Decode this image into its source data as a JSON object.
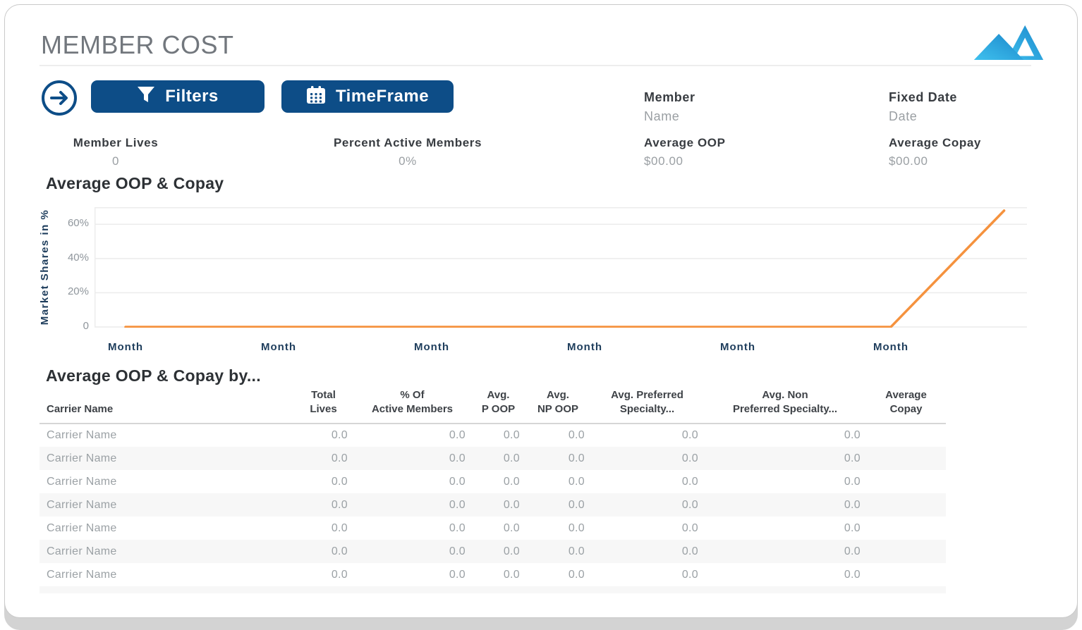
{
  "header": {
    "title": "MEMBER COST"
  },
  "toolbar": {
    "filters_label": "Filters",
    "timeframe_label": "TimeFrame",
    "member": {
      "label": "Member",
      "value": "Name"
    },
    "fixed_date": {
      "label": "Fixed Date",
      "value": "Date"
    }
  },
  "stats": {
    "member_lives": {
      "label": "Member Lives",
      "value": "0"
    },
    "percent_active_members": {
      "label": "Percent Active Members",
      "value": "0%"
    },
    "average_oop": {
      "label": "Average OOP",
      "value": "$00.00"
    },
    "average_copay": {
      "label": "Average Copay",
      "value": "$00.00"
    }
  },
  "chart_data": {
    "type": "line",
    "title": "Average OOP & Copay",
    "ylabel": "Market Shares in %",
    "x_tick_labels": [
      "Month",
      "Month",
      "Month",
      "Month",
      "Month",
      "Month"
    ],
    "x": [
      0,
      1,
      2,
      3,
      4,
      5,
      5.74
    ],
    "yticks": [
      0,
      20,
      40,
      60
    ],
    "ytick_labels": [
      "0",
      "20%",
      "40%",
      "60%"
    ],
    "ylim": [
      0,
      70
    ],
    "grid": "horizontal",
    "legend": "none",
    "series": [
      {
        "name": "Market Shares",
        "color": "#f5923e",
        "values": [
          0,
          0,
          0,
          0,
          0,
          0,
          68
        ]
      }
    ]
  },
  "table": {
    "title": "Average OOP & Copay by...",
    "columns": [
      "Carrier Name",
      "Total\nLives",
      "% Of\nActive Members",
      "Avg.\nP OOP",
      "Avg.\nNP OOP",
      "Avg. Preferred\nSpecialty...",
      "Avg. Non\nPreferred Specialty...",
      "Average\nCopay"
    ],
    "rows": [
      [
        "Carrier Name",
        "0.0",
        "0.0",
        "0.0",
        "0.0",
        "0.0",
        "0.0",
        ""
      ],
      [
        "Carrier Name",
        "0.0",
        "0.0",
        "0.0",
        "0.0",
        "0.0",
        "0.0",
        ""
      ],
      [
        "Carrier Name",
        "0.0",
        "0.0",
        "0.0",
        "0.0",
        "0.0",
        "0.0",
        ""
      ],
      [
        "Carrier Name",
        "0.0",
        "0.0",
        "0.0",
        "0.0",
        "0.0",
        "0.0",
        ""
      ],
      [
        "Carrier Name",
        "0.0",
        "0.0",
        "0.0",
        "0.0",
        "0.0",
        "0.0",
        ""
      ],
      [
        "Carrier Name",
        "0.0",
        "0.0",
        "0.0",
        "0.0",
        "0.0",
        "0.0",
        ""
      ],
      [
        "Carrier Name",
        "0.0",
        "0.0",
        "0.0",
        "0.0",
        "0.0",
        "0.0",
        ""
      ]
    ]
  },
  "colors": {
    "primary_blue": "#0d4d87",
    "accent_orange": "#f5923e",
    "navy_text": "#1e3d5c",
    "logo_blue_light": "#3fc1ee",
    "logo_blue_dark": "#1b87cb"
  }
}
